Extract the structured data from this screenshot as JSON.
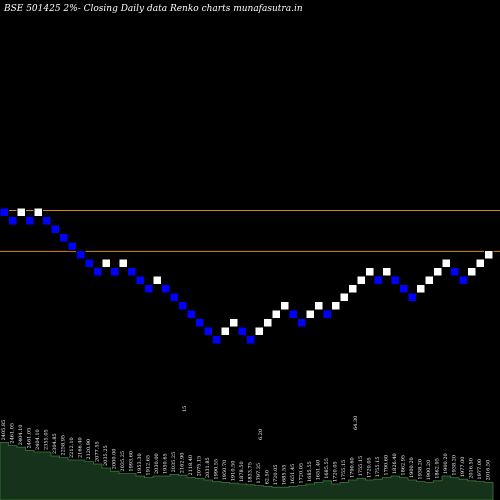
{
  "header": {
    "title": "BSE 501425 2%- Closing Daily data Renko charts munafasutra.in"
  },
  "colors": {
    "background": "#000000",
    "up_brick": "#ffffff",
    "down_brick": "#0000ff",
    "brick_border": "#000000",
    "reference_line": "#d08a22",
    "volume_fill": "#17321a",
    "volume_stroke": "#3a7a3a",
    "label_text": "#ffffff"
  },
  "chart_data": {
    "type": "renko",
    "title": "BSE 501425 2%- Closing Daily data Renko charts munafasutra.in",
    "reversal": "2%",
    "bricks": [
      {
        "dir": "down",
        "level": 0
      },
      {
        "dir": "down",
        "level": -1
      },
      {
        "dir": "up",
        "level": 0
      },
      {
        "dir": "down",
        "level": -1
      },
      {
        "dir": "up",
        "level": 0
      },
      {
        "dir": "down",
        "level": -1
      },
      {
        "dir": "down",
        "level": -2
      },
      {
        "dir": "down",
        "level": -3
      },
      {
        "dir": "down",
        "level": -4
      },
      {
        "dir": "down",
        "level": -5
      },
      {
        "dir": "down",
        "level": -6
      },
      {
        "dir": "down",
        "level": -7
      },
      {
        "dir": "up",
        "level": -6
      },
      {
        "dir": "down",
        "level": -7
      },
      {
        "dir": "up",
        "level": -6
      },
      {
        "dir": "down",
        "level": -7
      },
      {
        "dir": "down",
        "level": -8
      },
      {
        "dir": "down",
        "level": -9
      },
      {
        "dir": "up",
        "level": -8
      },
      {
        "dir": "down",
        "level": -9
      },
      {
        "dir": "down",
        "level": -10
      },
      {
        "dir": "down",
        "level": -11
      },
      {
        "dir": "down",
        "level": -12
      },
      {
        "dir": "down",
        "level": -13
      },
      {
        "dir": "down",
        "level": -14
      },
      {
        "dir": "down",
        "level": -15
      },
      {
        "dir": "up",
        "level": -14
      },
      {
        "dir": "up",
        "level": -13
      },
      {
        "dir": "down",
        "level": -14
      },
      {
        "dir": "down",
        "level": -15
      },
      {
        "dir": "up",
        "level": -14
      },
      {
        "dir": "up",
        "level": -13
      },
      {
        "dir": "up",
        "level": -12
      },
      {
        "dir": "up",
        "level": -11
      },
      {
        "dir": "down",
        "level": -12
      },
      {
        "dir": "down",
        "level": -13
      },
      {
        "dir": "up",
        "level": -12
      },
      {
        "dir": "up",
        "level": -11
      },
      {
        "dir": "down",
        "level": -12
      },
      {
        "dir": "up",
        "level": -11
      },
      {
        "dir": "up",
        "level": -10
      },
      {
        "dir": "up",
        "level": -9
      },
      {
        "dir": "up",
        "level": -8
      },
      {
        "dir": "up",
        "level": -7
      },
      {
        "dir": "down",
        "level": -8
      },
      {
        "dir": "up",
        "level": -7
      },
      {
        "dir": "down",
        "level": -8
      },
      {
        "dir": "down",
        "level": -9
      },
      {
        "dir": "down",
        "level": -10
      },
      {
        "dir": "up",
        "level": -9
      },
      {
        "dir": "up",
        "level": -8
      },
      {
        "dir": "up",
        "level": -7
      },
      {
        "dir": "up",
        "level": -6
      },
      {
        "dir": "down",
        "level": -7
      },
      {
        "dir": "down",
        "level": -8
      },
      {
        "dir": "up",
        "level": -7
      },
      {
        "dir": "up",
        "level": -6
      },
      {
        "dir": "up",
        "level": -5
      }
    ],
    "reference_lines": [
      {
        "level": 0.2
      },
      {
        "level": -4.6
      }
    ],
    "volume": [
      {
        "label": "2405.85",
        "value": 0.72
      },
      {
        "label": "2461.05",
        "value": 0.68
      },
      {
        "label": "2404.10",
        "value": 0.66
      },
      {
        "label": "2461.05",
        "value": 0.62
      },
      {
        "label": "2404.10",
        "value": 0.6
      },
      {
        "label": "2355.05",
        "value": 0.6
      },
      {
        "label": "2304.85",
        "value": 0.55
      },
      {
        "label": "2258.95",
        "value": 0.53
      },
      {
        "label": "2212.10",
        "value": 0.5
      },
      {
        "label": "2166.40",
        "value": 0.5
      },
      {
        "label": "2120.90",
        "value": 0.48
      },
      {
        "label": "2077.55",
        "value": 0.45
      },
      {
        "label": "2035.25",
        "value": 0.4
      },
      {
        "label": "2000.00",
        "value": 0.36
      },
      {
        "label": "2035.25",
        "value": 0.33
      },
      {
        "label": "1993.60",
        "value": 0.33
      },
      {
        "label": "1953.30",
        "value": 0.3
      },
      {
        "label": "1912.65",
        "value": 0.28
      },
      {
        "label": "2030.00",
        "value": 0.3
      },
      {
        "label": "1950.65",
        "value": 0.3
      },
      {
        "label": "2035.25",
        "value": 0.32
      },
      {
        "label": "2162.90",
        "value": 0.31
      },
      {
        "label": "2118.40",
        "value": 0.28
      },
      {
        "label": "2075.15",
        "value": 0.27
      },
      {
        "label": "2031.85",
        "value": 0.25
      },
      {
        "label": "1990.55",
        "value": 0.23
      },
      {
        "label": "1950.70",
        "value": 0.22
      },
      {
        "label": "1910.50",
        "value": 0.21
      },
      {
        "label": "1878.50",
        "value": 0.2
      },
      {
        "label": "1833.75",
        "value": 0.19
      },
      {
        "label": "1797.35",
        "value": 0.18
      },
      {
        "label": "62.50",
        "value": 0.17
      },
      {
        "label": "1720.05",
        "value": 0.16
      },
      {
        "label": "1685.55",
        "value": 0.16
      },
      {
        "label": "1651.45",
        "value": 0.17
      },
      {
        "label": "1720.05",
        "value": 0.18
      },
      {
        "label": "1685.55",
        "value": 0.2
      },
      {
        "label": "1651.40",
        "value": 0.22
      },
      {
        "label": "1685.55",
        "value": 0.24
      },
      {
        "label": "1720.05",
        "value": 0.2
      },
      {
        "label": "1755.15",
        "value": 0.22
      },
      {
        "label": "1790.60",
        "value": 0.25
      },
      {
        "label": "1755.15",
        "value": 0.27
      },
      {
        "label": "1720.05",
        "value": 0.25
      },
      {
        "label": "1755.15",
        "value": 0.26
      },
      {
        "label": "1790.60",
        "value": 0.28
      },
      {
        "label": "1826.40",
        "value": 0.3
      },
      {
        "label": "1862.95",
        "value": 0.28
      },
      {
        "label": "1900.20",
        "value": 0.25
      },
      {
        "label": "1938.20",
        "value": 0.23
      },
      {
        "label": "1900.20",
        "value": 0.22
      },
      {
        "label": "1862.95",
        "value": 0.24
      },
      {
        "label": "1900.20",
        "value": 0.3
      },
      {
        "label": "1938.20",
        "value": 0.28
      },
      {
        "label": "1977.00",
        "value": 0.26
      },
      {
        "label": "2016.50",
        "value": 0.24
      },
      {
        "label": "1977.00",
        "value": 0.23
      },
      {
        "label": "2016.50",
        "value": 0.22
      }
    ],
    "volume_labels_extra": [
      "6.20",
      "64.30",
      "15"
    ]
  }
}
